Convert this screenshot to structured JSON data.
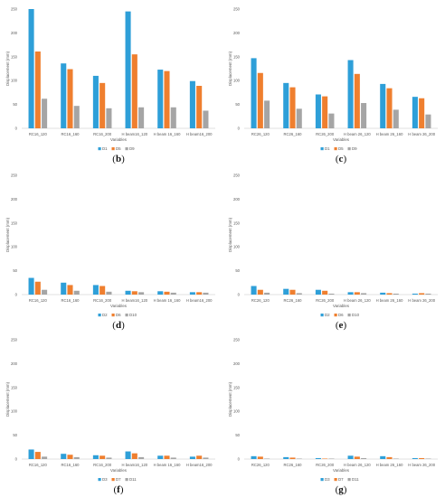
{
  "colors": {
    "series": [
      "#2e9fd8",
      "#ef7f2f",
      "#a5a5a5"
    ],
    "axis": "#d9d9d9",
    "text": "#595959"
  },
  "chart_data": [
    {
      "id": "b",
      "panel_label": "(b)",
      "type": "bar",
      "ylabel": "Displacement (mm)",
      "xlabel": "Variables",
      "ylim": [
        0,
        250
      ],
      "yticks": [
        0,
        50,
        100,
        150,
        200,
        250
      ],
      "categories": [
        "RC16_120",
        "RC16_160",
        "RC16_200",
        "H beam16_120",
        "H beam 16_160",
        "H beam16_200"
      ],
      "series": [
        {
          "name": "D1",
          "values": [
            250,
            136,
            110,
            245,
            123,
            99
          ]
        },
        {
          "name": "D5",
          "values": [
            161,
            124,
            95,
            155,
            120,
            89
          ]
        },
        {
          "name": "D9",
          "values": [
            62,
            47,
            42,
            44,
            44,
            37
          ]
        }
      ],
      "legend": "bottom"
    },
    {
      "id": "c",
      "panel_label": "(c)",
      "type": "bar",
      "ylabel": "Displacement (mm)",
      "xlabel": "Variables",
      "ylim": [
        0,
        250
      ],
      "yticks": [
        0,
        50,
        100,
        150,
        200,
        250
      ],
      "categories": [
        "RC26_120",
        "RC26_160",
        "RC26_200",
        "H beam 26_120",
        "H beam 26_160",
        "H beam 26_200"
      ],
      "series": [
        {
          "name": "D1",
          "values": [
            147,
            95,
            71,
            143,
            93,
            66
          ]
        },
        {
          "name": "D5",
          "values": [
            116,
            86,
            67,
            114,
            84,
            63
          ]
        },
        {
          "name": "D9",
          "values": [
            58,
            41,
            31,
            53,
            39,
            29
          ]
        }
      ],
      "legend": "bottom"
    },
    {
      "id": "d",
      "panel_label": "(d)",
      "type": "bar",
      "ylabel": "Displacement (mm)",
      "xlabel": "Variables",
      "ylim": [
        0,
        250
      ],
      "yticks": [
        0,
        50,
        100,
        150,
        200,
        250
      ],
      "categories": [
        "RC16_120",
        "RC16_160",
        "RC16_200",
        "H beam16_120",
        "H beam 16_160",
        "H beam16_200"
      ],
      "series": [
        {
          "name": "D2",
          "values": [
            35,
            25,
            20,
            8,
            7,
            5
          ]
        },
        {
          "name": "D6",
          "values": [
            27,
            20,
            18,
            7,
            6,
            5
          ]
        },
        {
          "name": "D10",
          "values": [
            10,
            8,
            6,
            5,
            4,
            4
          ]
        }
      ],
      "legend": "bottom"
    },
    {
      "id": "e",
      "panel_label": "(e)",
      "type": "bar",
      "ylabel": "Displacement (mm)",
      "xlabel": "Variables",
      "ylim": [
        0,
        250
      ],
      "yticks": [
        0,
        50,
        100,
        150,
        200,
        250
      ],
      "categories": [
        "RC26_120",
        "RC26_160",
        "RC26_200",
        "H beam 26_120",
        "H beam 26_160",
        "H beam 26_200"
      ],
      "series": [
        {
          "name": "D2",
          "values": [
            18,
            12,
            10,
            5,
            4,
            2
          ]
        },
        {
          "name": "D6",
          "values": [
            10,
            10,
            8,
            5,
            3,
            3
          ]
        },
        {
          "name": "D10",
          "values": [
            4,
            3,
            2,
            3,
            2,
            2
          ]
        }
      ],
      "legend": "bottom"
    },
    {
      "id": "f",
      "panel_label": "(f)",
      "type": "bar",
      "ylabel": "Displacement (mm)",
      "xlabel": "Variables",
      "ylim": [
        0,
        250
      ],
      "yticks": [
        0,
        50,
        100,
        150,
        200,
        250
      ],
      "categories": [
        "RC16_120",
        "RC16_160",
        "RC16_200",
        "H beam16_120",
        "H beam 16_160",
        "H beam16_200"
      ],
      "series": [
        {
          "name": "D3",
          "values": [
            20,
            11,
            8,
            16,
            7,
            5
          ]
        },
        {
          "name": "D7",
          "values": [
            15,
            9,
            7,
            12,
            7,
            7
          ]
        },
        {
          "name": "D11",
          "values": [
            5,
            4,
            3,
            4,
            3,
            3
          ]
        }
      ],
      "legend": "bottom"
    },
    {
      "id": "g",
      "panel_label": "(g)",
      "type": "bar",
      "ylabel": "Displacement (mm)",
      "xlabel": "Variables",
      "ylim": [
        0,
        250
      ],
      "yticks": [
        0,
        50,
        100,
        150,
        200,
        250
      ],
      "categories": [
        "RC26_120",
        "RC26_160",
        "RC26_200",
        "H beam 26_120",
        "H beam 26_160",
        "H beam 26_200"
      ],
      "series": [
        {
          "name": "D3",
          "values": [
            6,
            4,
            2,
            7,
            6,
            2
          ]
        },
        {
          "name": "D7",
          "values": [
            5,
            3,
            1,
            5,
            4,
            2
          ]
        },
        {
          "name": "D11",
          "values": [
            1,
            1,
            1,
            2,
            1,
            1
          ]
        }
      ],
      "legend": "bottom"
    }
  ]
}
